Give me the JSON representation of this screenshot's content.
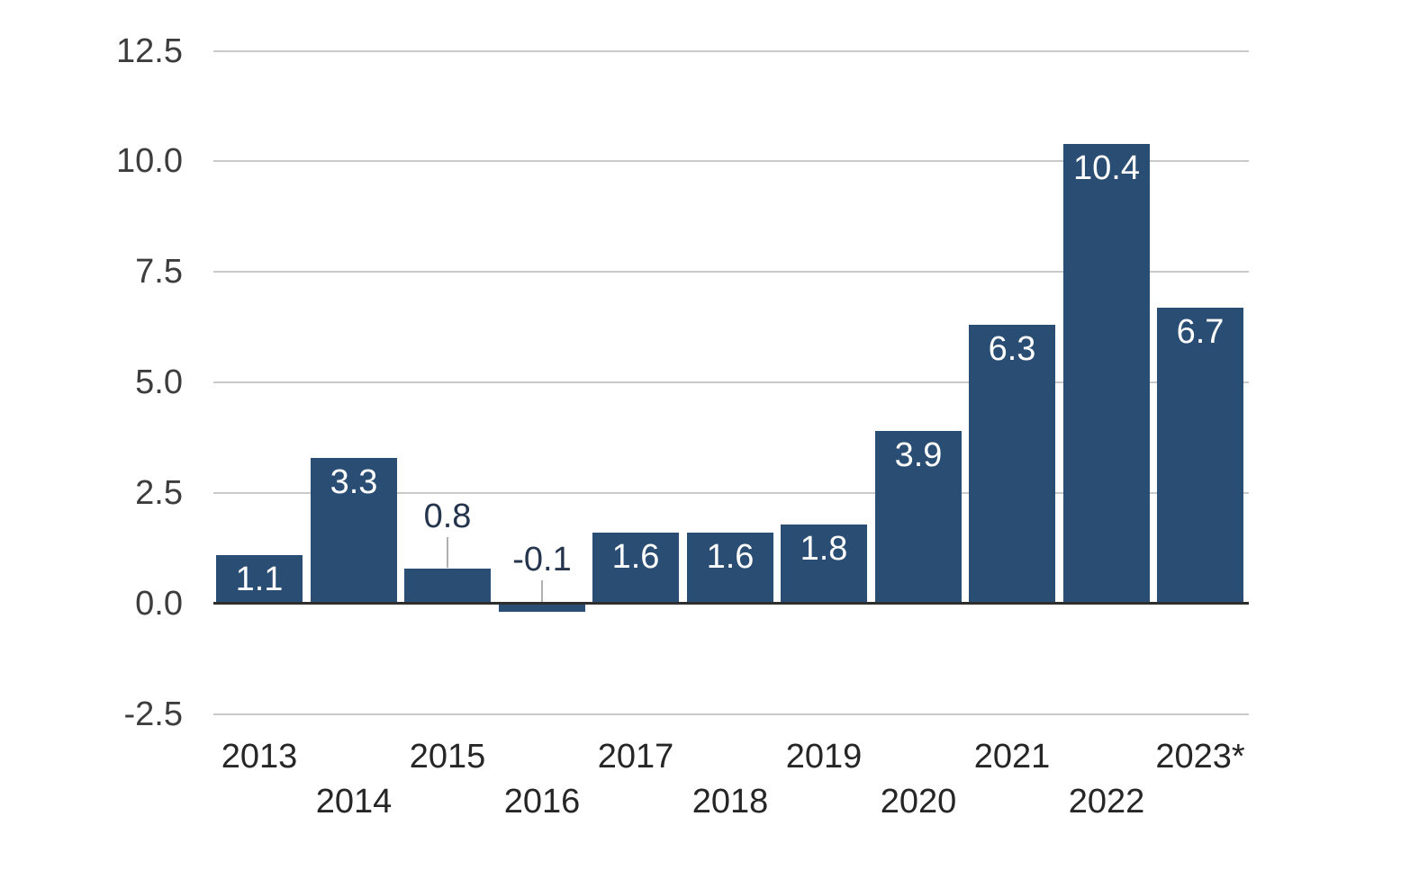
{
  "chart_data": {
    "type": "bar",
    "title": "",
    "xlabel": "",
    "ylabel": "",
    "categories": [
      "2013",
      "2014",
      "2015",
      "2016",
      "2017",
      "2018",
      "2019",
      "2020",
      "2021",
      "2022",
      "2023*"
    ],
    "values": [
      1.1,
      3.3,
      0.8,
      -0.1,
      1.6,
      1.6,
      1.8,
      3.9,
      6.3,
      10.4,
      6.7
    ],
    "value_labels": [
      "1.1",
      "3.3",
      "0.8",
      "-0.1",
      "1.6",
      "1.6",
      "1.8",
      "3.9",
      "6.3",
      "10.4",
      "6.7"
    ],
    "outside_label_indices": [
      2,
      3
    ],
    "y_ticks": [
      12.5,
      10.0,
      7.5,
      5.0,
      2.5,
      0.0,
      -2.5
    ],
    "y_tick_labels": [
      "12.5",
      "10.0",
      "7.5",
      "5.0",
      "2.5",
      "0.0",
      "-2.5"
    ],
    "ylim": [
      -2.5,
      12.5
    ],
    "grid": true,
    "legend": "none",
    "x_label_layout": "staggered-two-rows",
    "colors": {
      "bar": "#2a4d73",
      "grid_line": "#c9c9c9",
      "zero_axis_line": "#2e2e2e",
      "y_tick_label": "#3d3d3d",
      "x_tick_label": "#262626",
      "bar_value_label": "#ffffff",
      "outside_value_label": "#24354d",
      "leader_line": "#b0b0b0",
      "background": "#ffffff"
    }
  }
}
